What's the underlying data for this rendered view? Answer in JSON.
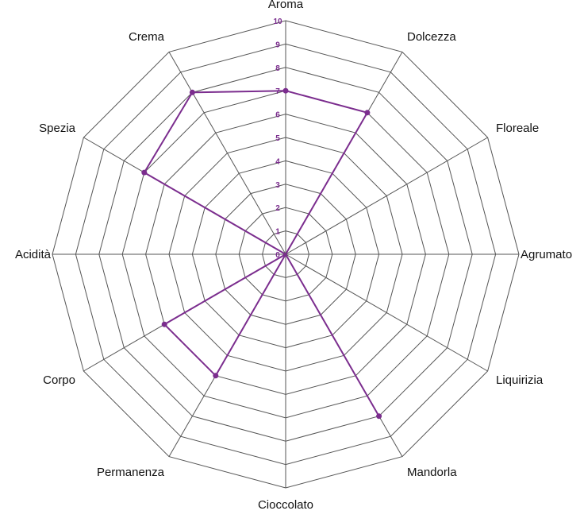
{
  "chart_data": {
    "type": "radar",
    "categories": [
      "Aroma",
      "Dolcezza",
      "Floreale",
      "Agrumato",
      "Liquirizia",
      "Mandorla",
      "Cioccolato",
      "Permanenza",
      "Corpo",
      "Acidità",
      "Spezia",
      "Crema"
    ],
    "series": [
      {
        "values": [
          7,
          7,
          0,
          0,
          0,
          8,
          0,
          6,
          6,
          0,
          7,
          8
        ],
        "color": "#7b2d8e"
      }
    ],
    "rlim": [
      0,
      10
    ],
    "ticks": [
      0,
      1,
      2,
      3,
      4,
      5,
      6,
      7,
      8,
      9,
      10
    ],
    "tick_labels": [
      "0",
      "1",
      "2",
      "3",
      "4",
      "5",
      "6",
      "7",
      "8",
      "9",
      "10"
    ],
    "grid": true,
    "colors": {
      "grid": "#555555",
      "tick_text": "#7b2d8e",
      "series": "#7b2d8e"
    }
  }
}
